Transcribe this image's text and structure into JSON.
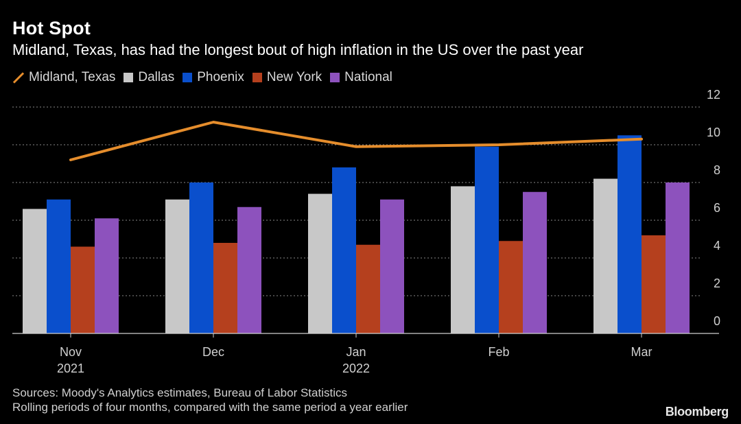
{
  "title": "Hot Spot",
  "subtitle": "Midland, Texas, has had the longest bout of high inflation in the US over the past year",
  "legend": [
    {
      "label": "Midland, Texas",
      "color": "#e58d2c",
      "kind": "line"
    },
    {
      "label": "Dallas",
      "color": "#c8c8c8",
      "kind": "bar"
    },
    {
      "label": "Phoenix",
      "color": "#0a4fcc",
      "kind": "bar"
    },
    {
      "label": "New York",
      "color": "#b5401e",
      "kind": "bar"
    },
    {
      "label": "National",
      "color": "#8d52bd",
      "kind": "bar"
    }
  ],
  "footer": {
    "sources": "Sources: Moody's Analytics estimates, Bureau of Labor Statistics",
    "note": "Rolling periods of four months, compared with the same period a year earlier",
    "brand": "Bloomberg"
  },
  "chart_data": {
    "type": "bar",
    "title": "Hot Spot",
    "xlabel": "",
    "ylabel": "",
    "ylim": [
      0,
      12
    ],
    "yticks": [
      0,
      2,
      4,
      6,
      8,
      10,
      12
    ],
    "grid": true,
    "categories": [
      "Nov",
      "Dec",
      "Jan",
      "Feb",
      "Mar"
    ],
    "category_years": [
      "2021",
      "",
      "2022",
      "",
      ""
    ],
    "series": [
      {
        "name": "Dallas",
        "type": "bar",
        "color": "#c8c8c8",
        "values": [
          6.6,
          7.1,
          7.4,
          7.8,
          8.2
        ]
      },
      {
        "name": "Phoenix",
        "type": "bar",
        "color": "#0a4fcc",
        "values": [
          7.1,
          8.0,
          8.8,
          9.9,
          10.5
        ]
      },
      {
        "name": "New York",
        "type": "bar",
        "color": "#b5401e",
        "values": [
          4.6,
          4.8,
          4.7,
          4.9,
          5.2
        ]
      },
      {
        "name": "National",
        "type": "bar",
        "color": "#8d52bd",
        "values": [
          6.1,
          6.7,
          7.1,
          7.5,
          8.0
        ]
      },
      {
        "name": "Midland, Texas",
        "type": "line",
        "color": "#e58d2c",
        "values": [
          9.2,
          11.2,
          9.9,
          10.0,
          10.3
        ]
      }
    ]
  }
}
